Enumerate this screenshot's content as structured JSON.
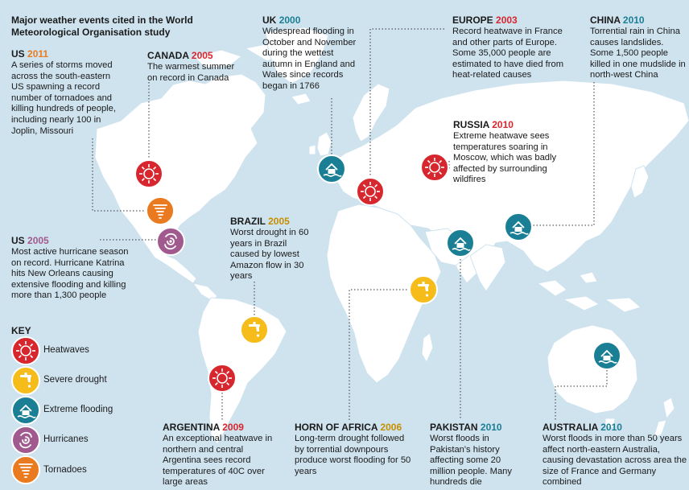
{
  "title": "Major weather events cited in the World Meteorological Organisation study",
  "colors": {
    "heatwave": "#d8262e",
    "drought": "#f6bd1a",
    "flooding": "#1a7f95",
    "hurricane": "#a05a8e",
    "tornado": "#ea7a1f",
    "sea": "#cfe3ef",
    "land": "#ffffff"
  },
  "key": {
    "title": "KEY",
    "items": [
      {
        "type": "heatwave",
        "label": "Heatwaves",
        "icon": "sun-icon"
      },
      {
        "type": "drought",
        "label": "Severe drought",
        "icon": "tap-icon"
      },
      {
        "type": "flooding",
        "label": "Extreme flooding",
        "icon": "flooded-house-icon"
      },
      {
        "type": "hurricane",
        "label": "Hurricanes",
        "icon": "hurricane-icon"
      },
      {
        "type": "tornado",
        "label": "Tornadoes",
        "icon": "tornado-icon"
      }
    ]
  },
  "events": [
    {
      "id": "us-2011",
      "region": "US",
      "year": "2011",
      "type": "tornado",
      "text": "A series of storms moved across the south-eastern US spawning a record number of tornadoes and killing hundreds of people, including nearly 100 in Joplin, Missouri"
    },
    {
      "id": "canada-2005",
      "region": "CANADA",
      "year": "2005",
      "type": "heatwave",
      "text": "The warmest summer on record in Canada"
    },
    {
      "id": "uk-2000",
      "region": "UK",
      "year": "2000",
      "type": "flooding",
      "text": "Widespread flooding in October and November during the wettest autumn in England and Wales since records began in 1766"
    },
    {
      "id": "europe-2003",
      "region": "EUROPE",
      "year": "2003",
      "type": "heatwave",
      "text": "Record heatwave in France and other parts of Europe. Some 35,000 people are estimated to have died from heat-related causes"
    },
    {
      "id": "china-2010",
      "region": "CHINA",
      "year": "2010",
      "type": "flooding",
      "text": "Torrential rain in China causes landslides. Some 1,500 people killed in one mudslide in north-west China"
    },
    {
      "id": "russia-2010",
      "region": "RUSSIA",
      "year": "2010",
      "type": "heatwave",
      "text": "Extreme heatwave sees temperatures soaring in Moscow, which was badly affected by surrounding wildfires"
    },
    {
      "id": "us-2005",
      "region": "US",
      "year": "2005",
      "type": "hurricane",
      "text": "Most active hurricane season on record. Hurricane Katrina hits New Orleans causing extensive flooding and killing more than 1,300 people"
    },
    {
      "id": "brazil-2005",
      "region": "BRAZIL",
      "year": "2005",
      "type": "drought",
      "text": "Worst drought in 60 years in Brazil caused by lowest Amazon flow in 30 years"
    },
    {
      "id": "argentina-2009",
      "region": "ARGENTINA",
      "year": "2009",
      "type": "heatwave",
      "text": "An exceptional heatwave in northern and central Argentina sees record temperatures of 40C over large areas"
    },
    {
      "id": "horn-2006",
      "region": "HORN OF AFRICA",
      "year": "2006",
      "type": "drought",
      "text": "Long-term drought followed by torrential downpours produce worst flooding for 50 years"
    },
    {
      "id": "pakistan-2010",
      "region": "PAKISTAN",
      "year": "2010",
      "type": "flooding",
      "text": "Worst floods in Pakistan's history affecting some 20 million people. Many hundreds die"
    },
    {
      "id": "australia-2010",
      "region": "AUSTRALIA",
      "year": "2010",
      "type": "flooding",
      "text": "Worst floods in more than 50 years affect north-eastern Australia, causing devastation across area the size of France and Germany combined"
    }
  ]
}
